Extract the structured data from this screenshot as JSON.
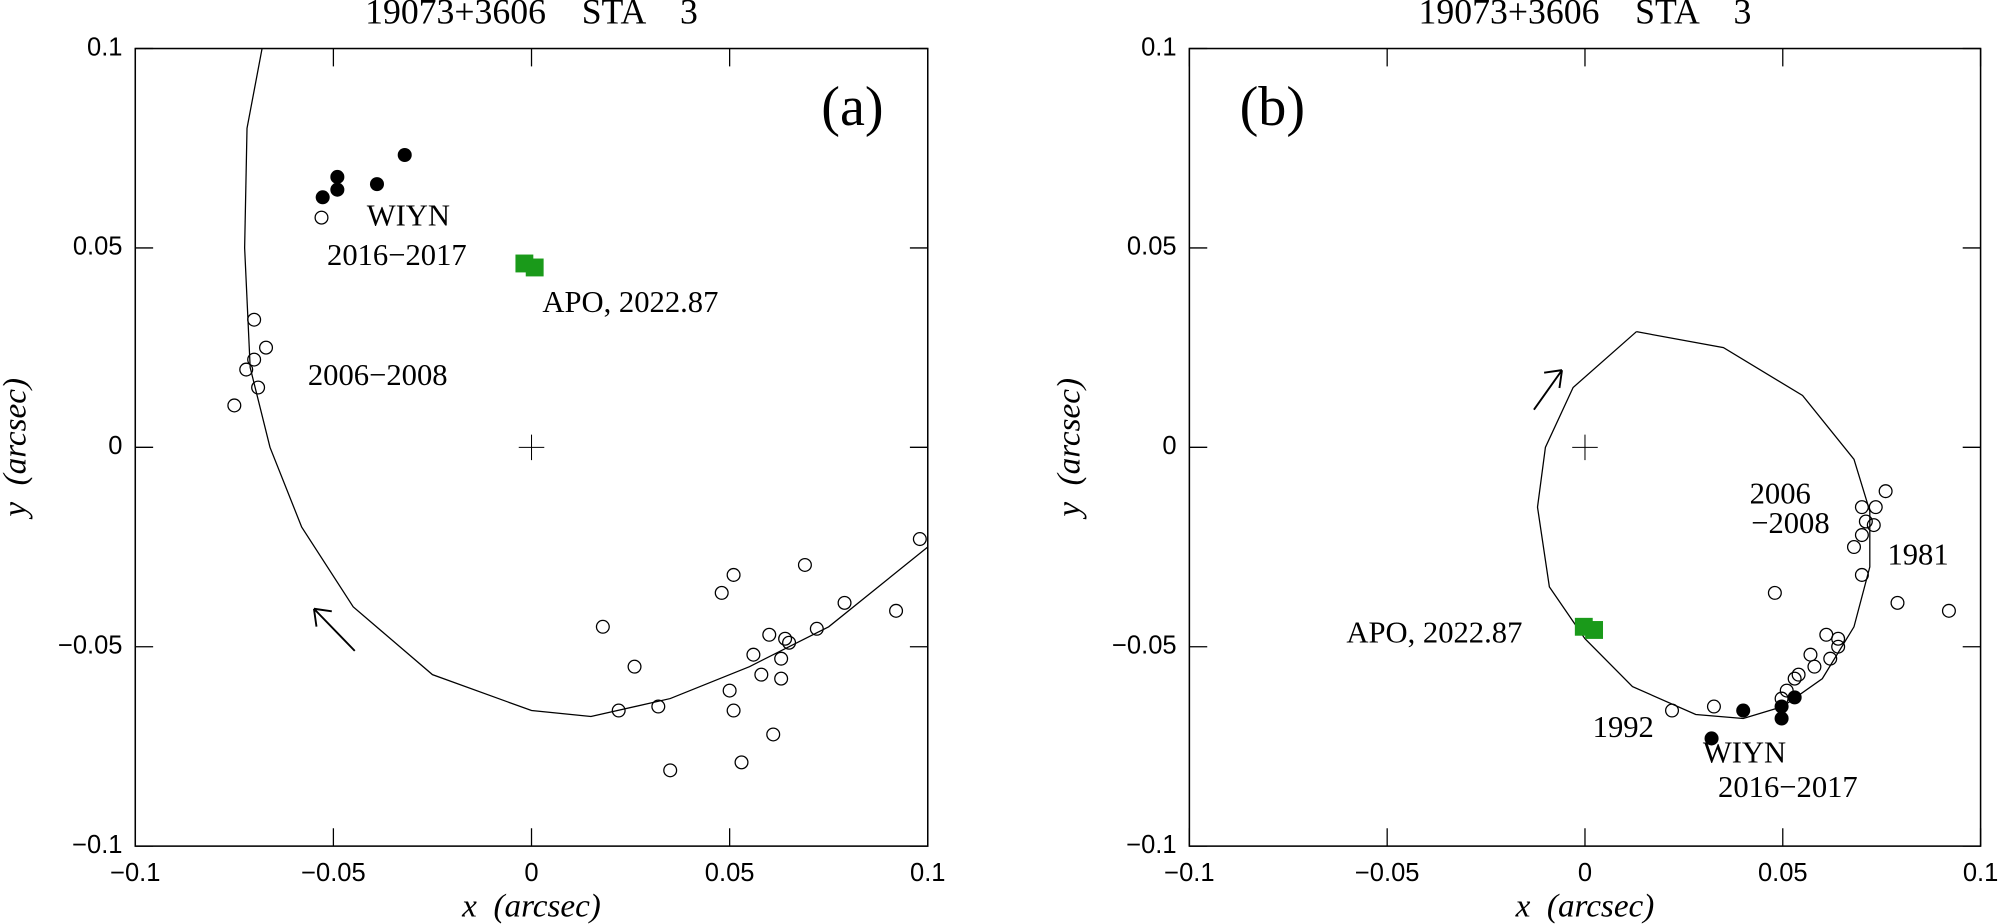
{
  "chart_data": [
    {
      "type": "scatter",
      "title": "19073+3606    STA    3",
      "xlabel": "x  (arcsec)",
      "ylabel": "y  (arcsec)",
      "xlim": [
        -0.1,
        0.1
      ],
      "ylim": [
        -0.1,
        0.1
      ],
      "xticks": [
        {
          "value": -0.1,
          "label": "−0.1"
        },
        {
          "value": -0.05,
          "label": "−0.05"
        },
        0,
        0.05,
        0.1
      ],
      "yticks": [
        {
          "value": -0.1,
          "label": "−0.1"
        },
        {
          "value": -0.05,
          "label": "−0.05"
        },
        0,
        0.05,
        0.1
      ],
      "annotations": [
        {
          "text": "(a)",
          "color": "#000000"
        },
        {
          "text": "WIYN",
          "color": "#000000"
        },
        {
          "text": "2016−2017",
          "color": "#000000"
        },
        {
          "text": "APO, 2022.87",
          "color": "#1a9a1a"
        },
        {
          "text": "2006−2008",
          "color": "#000000"
        }
      ],
      "series": [
        {
          "marker": "line",
          "color": "#000000",
          "x": [
            -0.068,
            -0.0718,
            -0.0724,
            -0.071,
            -0.066,
            -0.058,
            -0.045,
            -0.025,
            0,
            0.015,
            0.035,
            0.055,
            0.075,
            0.1
          ],
          "y": [
            0.1,
            0.08,
            0.05,
            0.02,
            0,
            -0.02,
            -0.04,
            -0.057,
            -0.066,
            -0.0675,
            -0.063,
            -0.055,
            -0.045,
            -0.025
          ]
        },
        {
          "marker": "open-circle",
          "color": "#000000",
          "x": [
            -0.072,
            -0.07,
            -0.07,
            -0.067,
            -0.069,
            -0.075,
            -0.053,
            0.018,
            0.026,
            0.022,
            0.032,
            0.035,
            0.048,
            0.051,
            0.05,
            0.051,
            0.053,
            0.056,
            0.058,
            0.06,
            0.063,
            0.061,
            0.063,
            0.064,
            0.065,
            0.069,
            0.072,
            0.079,
            0.092,
            0.098
          ],
          "y": [
            0.0195,
            0.032,
            0.022,
            0.025,
            0.015,
            0.0105,
            0.0576,
            -0.045,
            -0.055,
            -0.066,
            -0.065,
            -0.081,
            -0.0365,
            -0.032,
            -0.061,
            -0.066,
            -0.079,
            -0.052,
            -0.057,
            -0.047,
            -0.058,
            -0.072,
            -0.053,
            -0.048,
            -0.049,
            -0.0295,
            -0.0455,
            -0.039,
            -0.041,
            -0.023
          ]
        },
        {
          "marker": "filled-circle",
          "color": "#000000",
          "x": [
            -0.0527,
            -0.049,
            -0.049,
            -0.039,
            -0.032
          ],
          "y": [
            0.0627,
            0.0646,
            0.0678,
            0.066,
            0.0733
          ]
        },
        {
          "marker": "square",
          "color": "#1a9a1a",
          "x": [
            -0.0018,
            0.0008
          ],
          "y": [
            0.0461,
            0.0451
          ]
        }
      ]
    },
    {
      "type": "scatter",
      "title": "19073+3606    STA    3",
      "xlabel": "x  (arcsec)",
      "ylabel": "y  (arcsec)",
      "xlim": [
        -0.1,
        0.1
      ],
      "ylim": [
        -0.1,
        0.1
      ],
      "xticks": [
        {
          "value": -0.1,
          "label": "−0.1"
        },
        {
          "value": -0.05,
          "label": "−0.05"
        },
        0,
        0.05,
        0.1
      ],
      "yticks": [
        {
          "value": -0.1,
          "label": "−0.1"
        },
        {
          "value": -0.05,
          "label": "−0.05"
        },
        0,
        0.05,
        0.1
      ],
      "annotations": [
        {
          "text": "(b)",
          "color": "#000000"
        },
        {
          "text": "2006",
          "color": "#000000"
        },
        {
          "text": "−2008",
          "color": "#000000"
        },
        {
          "text": "1981",
          "color": "#000000"
        },
        {
          "text": "1992",
          "color": "#000000"
        },
        {
          "text": "WIYN",
          "color": "#000000"
        },
        {
          "text": "2016−2017",
          "color": "#000000"
        },
        {
          "text": "APO, 2022.87",
          "color": "#1a9a1a"
        }
      ],
      "series": [
        {
          "marker": "line",
          "color": "#000000",
          "x": [
            0.013,
            0.035,
            0.055,
            0.068,
            0.072,
            0.072,
            0.068,
            0.06,
            0.05,
            0.04,
            0.028,
            0.012,
            0.0,
            -0.009,
            -0.012,
            -0.01,
            -0.003,
            0.013
          ],
          "y": [
            0.029,
            0.025,
            0.013,
            -0.003,
            -0.016,
            -0.03,
            -0.045,
            -0.058,
            -0.065,
            -0.068,
            -0.067,
            -0.06,
            -0.048,
            -0.035,
            -0.015,
            0.0,
            0.015,
            0.029
          ]
        },
        {
          "marker": "open-circle",
          "color": "#000000",
          "x": [
            0.076,
            0.0735,
            0.07,
            0.071,
            0.073,
            0.07,
            0.068,
            0.07,
            0.079,
            0.092,
            0.048,
            0.061,
            0.064,
            0.064,
            0.062,
            0.057,
            0.054,
            0.053,
            0.058,
            0.051,
            0.0497,
            0.0326,
            0.022
          ],
          "y": [
            -0.011,
            -0.015,
            -0.015,
            -0.0186,
            -0.0195,
            -0.022,
            -0.025,
            -0.032,
            -0.039,
            -0.041,
            -0.0365,
            -0.047,
            -0.048,
            -0.05,
            -0.053,
            -0.052,
            -0.057,
            -0.058,
            -0.055,
            -0.061,
            -0.063,
            -0.065,
            -0.066
          ]
        },
        {
          "marker": "filled-circle",
          "color": "#000000",
          "x": [
            0.032,
            0.04,
            0.0497,
            0.0497,
            0.053
          ],
          "y": [
            -0.073,
            -0.066,
            -0.065,
            -0.068,
            -0.0627
          ]
        },
        {
          "marker": "square",
          "color": "#1a9a1a",
          "x": [
            -0.0003,
            0.0023
          ],
          "y": [
            -0.045,
            -0.0458
          ]
        }
      ]
    }
  ]
}
